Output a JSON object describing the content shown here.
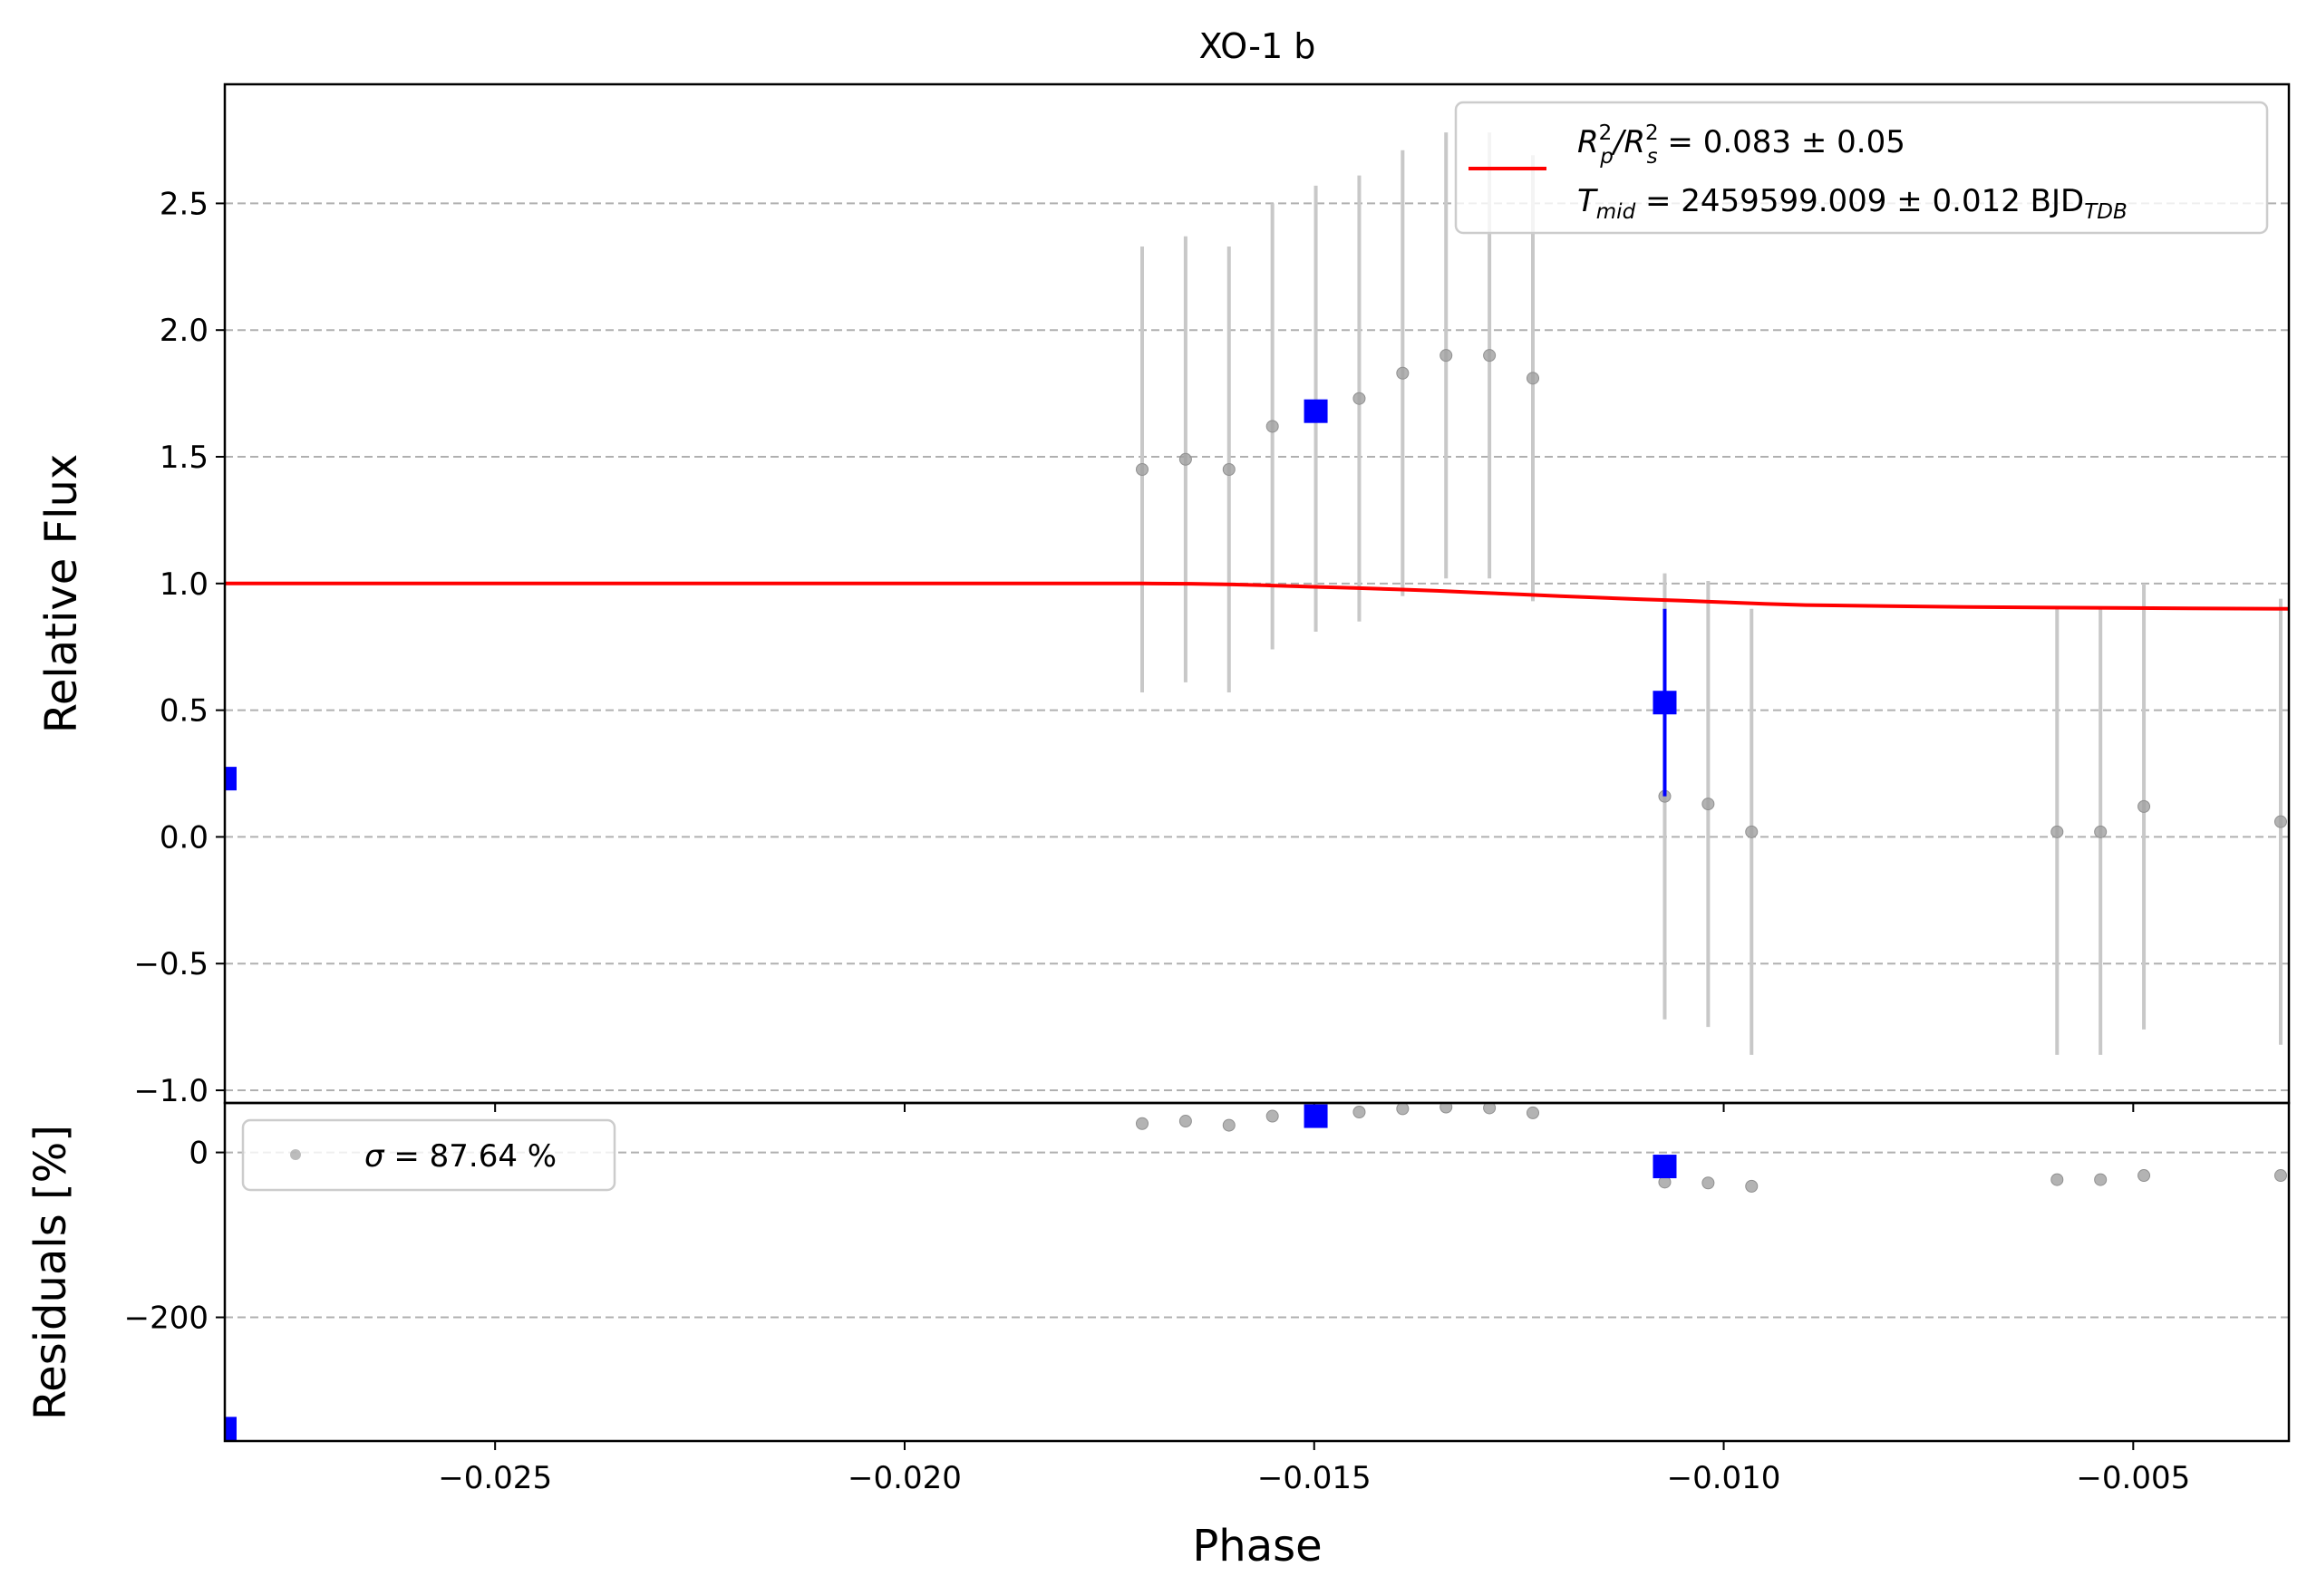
{
  "chart_data": [
    {
      "type": "scatter",
      "title": "XO-1 b",
      "xlabel": "",
      "ylabel": "Relative Flux",
      "xlim": [
        -0.0283,
        -0.0031
      ],
      "ylim": [
        -1.05,
        2.97
      ],
      "xticks": [
        -0.025,
        -0.02,
        -0.015,
        -0.01,
        -0.005
      ],
      "yticks": [
        -1.0,
        -0.5,
        0.0,
        0.5,
        1.0,
        1.5,
        2.0,
        2.5
      ],
      "ytick_labels": [
        "−1.0",
        "−0.5",
        "0.0",
        "0.5",
        "1.0",
        "1.5",
        "2.0",
        "2.5"
      ],
      "grid": "horizontal dashed",
      "legend_position": "top-right",
      "colors": {
        "model": "#ff0000",
        "binned": "#0000ff",
        "raw": "#a0a0a0",
        "raw_err": "#c8c8c8"
      },
      "series": [
        {
          "name": "",
          "kind": "raw",
          "x": [
            -0.0171,
            -0.01657,
            -0.01604,
            -0.01551,
            -0.01498,
            -0.01445,
            -0.01392,
            -0.01339,
            -0.01286,
            -0.01233,
            -0.01072,
            -0.01019,
            -0.00966,
            -0.00593,
            -0.0054,
            -0.00487,
            -0.0032
          ],
          "y": [
            1.45,
            1.49,
            1.45,
            1.62,
            1.69,
            1.73,
            1.83,
            1.9,
            1.9,
            1.81,
            0.16,
            0.13,
            0.02,
            0.02,
            0.02,
            0.12,
            0.06
          ],
          "err": [
            0.88,
            0.88,
            0.88,
            0.88,
            0.88,
            0.88,
            0.88,
            0.88,
            0.88,
            0.88,
            0.88,
            0.88,
            0.88,
            0.88,
            0.88,
            0.88,
            0.88
          ]
        },
        {
          "name": "",
          "kind": "binned",
          "x": [
            -0.0283,
            -0.01498,
            -0.01072
          ],
          "y": [
            0.23,
            1.68,
            0.53
          ],
          "err": [
            0.0,
            0.03,
            0.37
          ]
        },
        {
          "name": "Rp²/Rs² = 0.083 ± 0.05 ; Tmid = 2459599.009 ± 0.012 BJD_TDB",
          "kind": "model",
          "x": [
            -0.0283,
            -0.02,
            -0.0171,
            -0.0165,
            -0.016,
            -0.0155,
            -0.015,
            -0.0145,
            -0.014,
            -0.0135,
            -0.013,
            -0.0125,
            -0.012,
            -0.0115,
            -0.011,
            -0.0105,
            -0.01,
            -0.0095,
            -0.009,
            -0.008,
            -0.007,
            -0.006,
            -0.005,
            -0.0031
          ],
          "y": [
            1.0,
            1.0,
            1.0,
            0.999,
            0.996,
            0.992,
            0.987,
            0.982,
            0.977,
            0.971,
            0.964,
            0.957,
            0.95,
            0.944,
            0.938,
            0.932,
            0.926,
            0.92,
            0.915,
            0.911,
            0.907,
            0.905,
            0.903,
            0.9
          ]
        }
      ]
    },
    {
      "type": "scatter",
      "title": "",
      "xlabel": "Phase",
      "ylabel": "Residuals [%]",
      "xlim": [
        -0.0283,
        -0.0031
      ],
      "ylim": [
        -350,
        60
      ],
      "xticks": [
        -0.025,
        -0.02,
        -0.015,
        -0.01,
        -0.005
      ],
      "xtick_labels": [
        "−0.025",
        "−0.020",
        "−0.015",
        "−0.010",
        "−0.005"
      ],
      "yticks": [
        0,
        -200
      ],
      "ytick_labels": [
        "0",
        "−200"
      ],
      "grid": "horizontal dashed",
      "legend_position": "top-left",
      "series": [
        {
          "name": "σ = 87.64 %",
          "kind": "raw",
          "x": [
            -0.0171,
            -0.01657,
            -0.01604,
            -0.01551,
            -0.01498,
            -0.01445,
            -0.01392,
            -0.01339,
            -0.01286,
            -0.01233,
            -0.01072,
            -0.01019,
            -0.00966,
            -0.00593,
            -0.0054,
            -0.00487,
            -0.0032
          ],
          "y": [
            35,
            38,
            33,
            44,
            49,
            49,
            53,
            55,
            54,
            48,
            -36,
            -37,
            -41,
            -33,
            -33,
            -28,
            -28
          ]
        },
        {
          "name": "",
          "kind": "binned",
          "x": [
            -0.0283,
            -0.01498,
            -0.01072
          ],
          "y": [
            -335,
            44,
            -17
          ]
        }
      ]
    }
  ],
  "legend_main": {
    "line1_prefix": "R",
    "line1_sup1": "2",
    "line1_sub1": "p",
    "line1_mid": "/R",
    "line1_sup2": "2",
    "line1_sub2": "s",
    "line1_suffix": " = 0.083 ± 0.05",
    "line2_prefix": "T",
    "line2_sub": "mid",
    "line2_suffix": " = 2459599.009 ± 0.012 BJD",
    "line2_sub2": "TDB"
  },
  "legend_resid": {
    "sigma": "σ",
    "text": " = 87.64 %"
  }
}
